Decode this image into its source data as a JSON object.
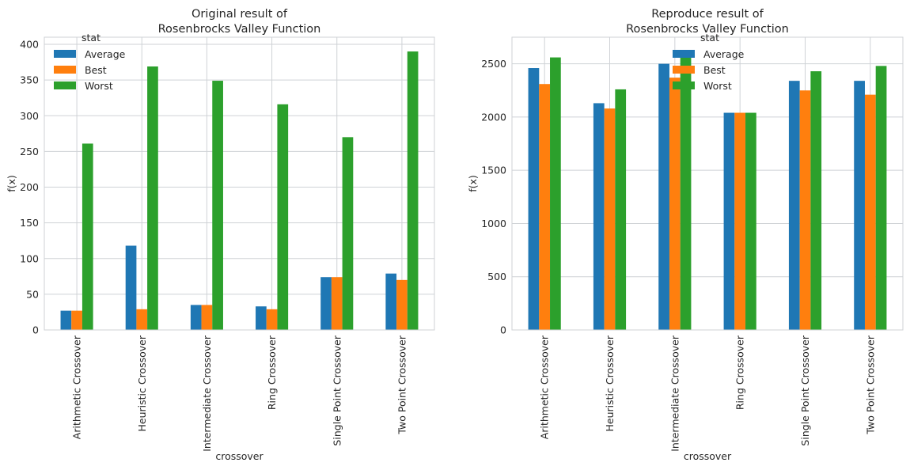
{
  "chart_data": [
    {
      "type": "bar",
      "title": "Original result of\nRosenbrocks Valley Function",
      "xlabel": "crossover",
      "ylabel": "f(x)",
      "ylim": [
        0,
        410
      ],
      "yticks": [
        0,
        50,
        100,
        150,
        200,
        250,
        300,
        350,
        400
      ],
      "grid": true,
      "legend": {
        "title": "stat",
        "placement": "top-left"
      },
      "categories": [
        "Arithmetic Crossover",
        "Heuristic Crossover",
        "Intermediate Crossover",
        "Ring Crossover",
        "Single Point Crossover",
        "Two Point Crossover"
      ],
      "series": [
        {
          "name": "Average",
          "color": "#1f77b4",
          "values": [
            27,
            118,
            35,
            33,
            74,
            79
          ]
        },
        {
          "name": "Best",
          "color": "#ff7f0e",
          "values": [
            27,
            29,
            35,
            29,
            74,
            70
          ]
        },
        {
          "name": "Worst",
          "color": "#2ca02c",
          "values": [
            261,
            369,
            349,
            316,
            270,
            390
          ]
        }
      ]
    },
    {
      "type": "bar",
      "title": "Reproduce result of\nRosenbrocks Valley Function",
      "xlabel": "crossover",
      "ylabel": "f(x)",
      "ylim": [
        0,
        2750
      ],
      "yticks": [
        0,
        500,
        1000,
        1500,
        2000,
        2500
      ],
      "grid": true,
      "legend": {
        "title": "stat",
        "placement": "top-center"
      },
      "categories": [
        "Arithmetic Crossover",
        "Heuristic Crossover",
        "Intermediate Crossover",
        "Ring Crossover",
        "Single Point Crossover",
        "Two Point Crossover"
      ],
      "series": [
        {
          "name": "Average",
          "color": "#1f77b4",
          "values": [
            2460,
            2130,
            2500,
            2040,
            2340,
            2340
          ]
        },
        {
          "name": "Best",
          "color": "#ff7f0e",
          "values": [
            2310,
            2080,
            2370,
            2040,
            2250,
            2210
          ]
        },
        {
          "name": "Worst",
          "color": "#2ca02c",
          "values": [
            2560,
            2260,
            2610,
            2040,
            2430,
            2480
          ]
        }
      ]
    }
  ]
}
